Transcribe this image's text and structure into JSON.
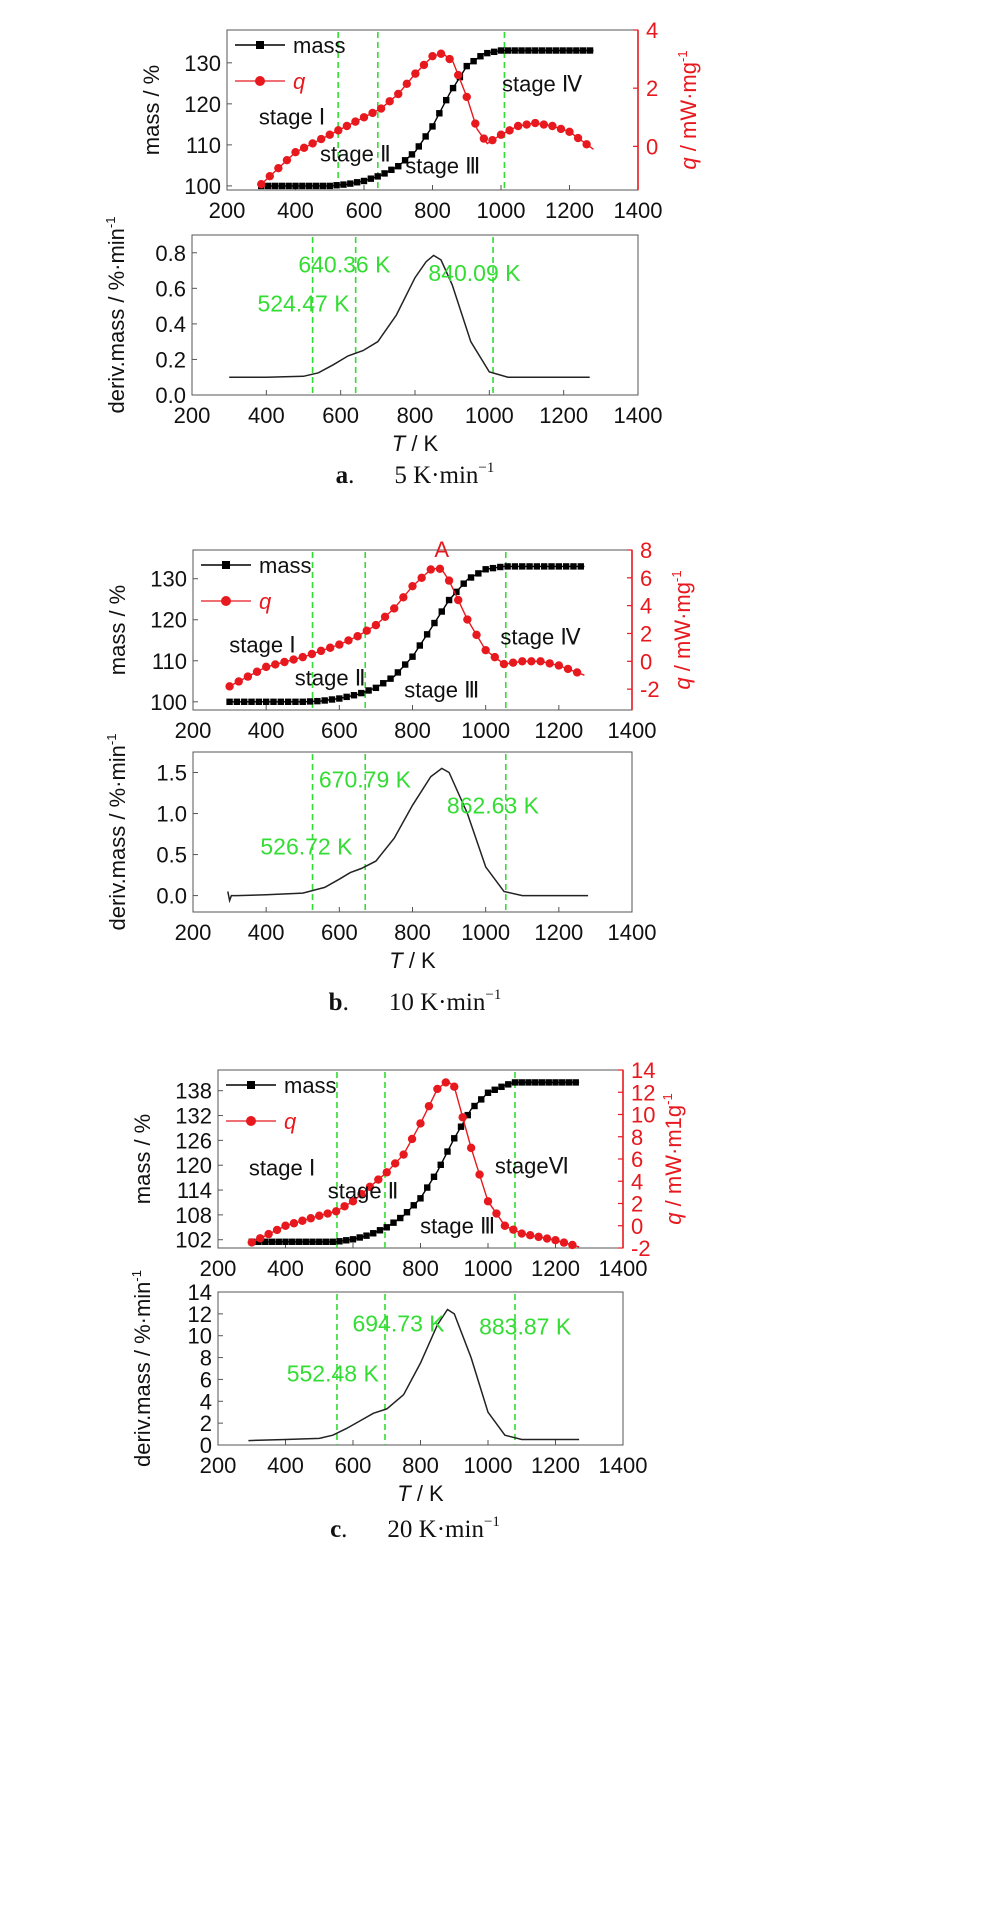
{
  "colors": {
    "mass": "#000000",
    "q": "#e8191e",
    "marker_line": "#33dd33",
    "axis": "#555555",
    "text": "#111111"
  },
  "chart_data": [
    {
      "panel": "a",
      "caption": {
        "letter": "a",
        "punct": ".",
        "rate": "5 K·min",
        "exp": "−1"
      },
      "top": {
        "type": "line",
        "xlim": [
          200,
          1400
        ],
        "xticks": [
          200,
          400,
          600,
          800,
          1000,
          1200,
          1400
        ],
        "ylim_left": [
          99,
          138
        ],
        "yticks_left": [
          100,
          110,
          120,
          130
        ],
        "ylabel_left": "mass / %",
        "ylim_right": [
          -1.5,
          4
        ],
        "yticks_right": [
          0,
          2,
          4
        ],
        "ylabel_right": {
          "italic": "q",
          "text": " / mW·mg",
          "sup": "-1"
        },
        "legend": [
          "mass",
          "q"
        ],
        "legend_position": "top-left",
        "vlines": [
          524.47,
          640.36,
          1010
        ],
        "stages": [
          {
            "label": "stage Ⅰ",
            "x": 390,
            "y": 115
          },
          {
            "label": "stage Ⅱ",
            "x": 575,
            "y": 106
          },
          {
            "label": "stage Ⅲ",
            "x": 830,
            "y": 103
          },
          {
            "label": "stage Ⅳ",
            "x": 1120,
            "y": 123
          }
        ],
        "series": [
          {
            "name": "mass",
            "axis": "left",
            "marker": "square",
            "x": [
              300,
              500,
              550,
              600,
              650,
              700,
              750,
              800,
              850,
              900,
              950,
              1000,
              1050,
              1270
            ],
            "y": [
              100,
              100,
              100.4,
              101.2,
              102.6,
              104.8,
              108.4,
              114.5,
              122.5,
              129.2,
              132.2,
              133,
              133,
              133
            ]
          },
          {
            "name": "q",
            "axis": "right",
            "marker": "circle",
            "x": [
              300,
              400,
              500,
              600,
              650,
              700,
              750,
              800,
              830,
              860,
              900,
              930,
              960,
              1000,
              1050,
              1100,
              1150,
              1200,
              1270
            ],
            "y": [
              -1.3,
              -0.2,
              0.4,
              1.0,
              1.3,
              1.8,
              2.5,
              3.1,
              3.2,
              2.9,
              1.7,
              0.6,
              0.1,
              0.4,
              0.7,
              0.8,
              0.7,
              0.5,
              -0.1
            ]
          }
        ]
      },
      "bottom": {
        "type": "line",
        "xlim": [
          200,
          1400
        ],
        "xticks": [
          200,
          400,
          600,
          800,
          1000,
          1200,
          1400
        ],
        "ylim": [
          0,
          0.9
        ],
        "yticks": [
          0.0,
          0.2,
          0.4,
          0.6,
          0.8
        ],
        "ytick_labels": [
          "0.0",
          "0.2",
          "0.4",
          "0.6",
          "0.8"
        ],
        "ylabel": "deriv.mass / %·min",
        "ylabel_sup": "-1",
        "xlabel": {
          "italic": "T",
          "text": " / K"
        },
        "vlines": [
          524.47,
          640.36,
          1010
        ],
        "temps": [
          {
            "label": "524.47 K",
            "x": 500,
            "y": 0.47
          },
          {
            "label": "640.36 K",
            "x": 610,
            "y": 0.69
          },
          {
            "label": "840.09 K",
            "x": 960,
            "y": 0.64
          }
        ],
        "series": [
          {
            "name": "deriv.mass",
            "x": [
              300,
              400,
              500,
              540,
              580,
              620,
              660,
              700,
              750,
              800,
              830,
              850,
              870,
              900,
              950,
              1000,
              1050,
              1100,
              1200,
              1270
            ],
            "y": [
              0.1,
              0.1,
              0.105,
              0.125,
              0.17,
              0.22,
              0.25,
              0.3,
              0.45,
              0.66,
              0.75,
              0.785,
              0.76,
              0.62,
              0.3,
              0.13,
              0.1,
              0.1,
              0.1,
              0.1
            ]
          }
        ]
      }
    },
    {
      "panel": "b",
      "caption": {
        "letter": "b",
        "punct": ".",
        "rate": "10 K·min",
        "exp": "−1"
      },
      "top": {
        "type": "line",
        "xlim": [
          200,
          1400
        ],
        "xticks": [
          200,
          400,
          600,
          800,
          1000,
          1200,
          1400
        ],
        "ylim_left": [
          98,
          137
        ],
        "yticks_left": [
          100,
          110,
          120,
          130
        ],
        "ylabel_left": "mass / %",
        "ylim_right": [
          -3.5,
          8
        ],
        "yticks_right": [
          -2,
          0,
          2,
          4,
          6,
          8
        ],
        "ylabel_right": {
          "italic": "q",
          "text": " / mW·mg",
          "sup": "-1"
        },
        "legend": [
          "mass",
          "q"
        ],
        "legend_position": "top-left",
        "annotation": {
          "label": "A",
          "x": 880,
          "y": 7.5
        },
        "vlines": [
          526.72,
          670.79,
          1055
        ],
        "stages": [
          {
            "label": "stage Ⅰ",
            "x": 390,
            "y": 112
          },
          {
            "label": "stage Ⅱ",
            "x": 575,
            "y": 104
          },
          {
            "label": "stage Ⅲ",
            "x": 880,
            "y": 101
          },
          {
            "label": "stage Ⅳ",
            "x": 1150,
            "y": 114
          }
        ],
        "series": [
          {
            "name": "mass",
            "axis": "left",
            "marker": "square",
            "x": [
              300,
              500,
              550,
              600,
              650,
              700,
              750,
              800,
              850,
              900,
              950,
              1000,
              1050,
              1100,
              1270
            ],
            "y": [
              100,
              100,
              100.2,
              100.8,
              101.8,
              103.4,
              106.2,
              111,
              117.8,
              124.8,
              129.8,
              132.3,
              133,
              133,
              133
            ]
          },
          {
            "name": "q",
            "axis": "right",
            "marker": "circle",
            "x": [
              300,
              400,
              500,
              600,
              650,
              700,
              750,
              800,
              850,
              870,
              880,
              900,
              950,
              1000,
              1050,
              1100,
              1150,
              1200,
              1270
            ],
            "y": [
              -1.8,
              -0.4,
              0.3,
              1.2,
              1.8,
              2.6,
              3.8,
              5.4,
              6.6,
              6.7,
              6.6,
              5.8,
              3.0,
              0.8,
              -0.2,
              0.0,
              0.0,
              -0.3,
              -1.0
            ]
          }
        ]
      },
      "bottom": {
        "type": "line",
        "xlim": [
          200,
          1400
        ],
        "xticks": [
          200,
          400,
          600,
          800,
          1000,
          1200,
          1400
        ],
        "ylim": [
          -0.2,
          1.75
        ],
        "yticks": [
          0.0,
          0.5,
          1.0,
          1.5
        ],
        "ytick_labels": [
          "0.0",
          "0.5",
          "1.0",
          "1.5"
        ],
        "ylabel": "deriv.mass / %·min",
        "ylabel_sup": "-1",
        "xlabel": {
          "italic": "T",
          "text": " / K"
        },
        "vlines": [
          526.72,
          670.79,
          1055
        ],
        "temps": [
          {
            "label": "526.72 K",
            "x": 510,
            "y": 0.5
          },
          {
            "label": "670.79 K",
            "x": 670,
            "y": 1.32
          },
          {
            "label": "862.63 K",
            "x": 1020,
            "y": 1.0
          }
        ],
        "series": [
          {
            "name": "deriv.mass",
            "x": [
              295,
              300,
              305,
              320,
              400,
              500,
              560,
              600,
              630,
              660,
              700,
              750,
              800,
              850,
              880,
              900,
              950,
              1000,
              1050,
              1100,
              1200,
              1280
            ],
            "y": [
              0.05,
              -0.06,
              0.0,
              0.0,
              0.01,
              0.03,
              0.1,
              0.2,
              0.28,
              0.33,
              0.42,
              0.7,
              1.1,
              1.45,
              1.55,
              1.5,
              1.0,
              0.35,
              0.05,
              0.0,
              0.0,
              0.0
            ]
          }
        ]
      }
    },
    {
      "panel": "c",
      "caption": {
        "letter": "c",
        "punct": ".",
        "rate": "20 K·min",
        "exp": "−1"
      },
      "top": {
        "type": "line",
        "xlim": [
          200,
          1400
        ],
        "xticks": [
          200,
          400,
          600,
          800,
          1000,
          1200,
          1400
        ],
        "ylim_left": [
          100,
          143
        ],
        "yticks_left": [
          102,
          108,
          114,
          120,
          126,
          132,
          138
        ],
        "ylabel_left": "mass / %",
        "ylim_right": [
          -2,
          14
        ],
        "yticks_right": [
          -2,
          0,
          2,
          4,
          6,
          8,
          10,
          12,
          14
        ],
        "ylabel_right": {
          "italic": "q",
          "text": " / mW·m1g",
          "sup": "-1"
        },
        "legend": [
          "mass",
          "q"
        ],
        "legend_position": "top-left",
        "vlines": [
          552.48,
          694.73,
          1080
        ],
        "stages": [
          {
            "label": "stage Ⅰ",
            "x": 390,
            "y": 117.5
          },
          {
            "label": "stage Ⅱ",
            "x": 630,
            "y": 112
          },
          {
            "label": "stage Ⅲ",
            "x": 910,
            "y": 103.5
          },
          {
            "label": "stageⅥ",
            "x": 1130,
            "y": 118
          }
        ],
        "series": [
          {
            "name": "mass",
            "axis": "left",
            "marker": "square",
            "x": [
              300,
              550,
              600,
              650,
              700,
              750,
              800,
              850,
              900,
              950,
              1000,
              1050,
              1080,
              1100,
              1270
            ],
            "y": [
              101.5,
              101.5,
              102.1,
              103.2,
              105,
              107.8,
              112,
              118.5,
              126.5,
              133.5,
              137.5,
              139.3,
              140,
              140,
              140
            ]
          },
          {
            "name": "q",
            "axis": "right",
            "marker": "circle",
            "x": [
              300,
              400,
              500,
              550,
              600,
              650,
              700,
              750,
              800,
              850,
              880,
              900,
              950,
              1000,
              1050,
              1100,
              1150,
              1200,
              1270
            ],
            "y": [
              -1.5,
              0.0,
              0.9,
              1.3,
              2.2,
              3.5,
              4.8,
              6.4,
              9.2,
              12.3,
              13.0,
              12.5,
              7.0,
              2.2,
              0.0,
              -0.7,
              -1.0,
              -1.3,
              -1.9
            ]
          }
        ]
      },
      "bottom": {
        "type": "line",
        "xlim": [
          200,
          1400
        ],
        "xticks": [
          200,
          400,
          600,
          800,
          1000,
          1200,
          1400
        ],
        "ylim": [
          0,
          14
        ],
        "yticks": [
          0,
          2,
          4,
          6,
          8,
          10,
          12,
          14
        ],
        "ytick_labels": [
          "0",
          "2",
          "4",
          "6",
          "8",
          "10",
          "12",
          "14"
        ],
        "ylabel": "deriv.mass / %·min",
        "ylabel_sup": "-1",
        "xlabel": {
          "italic": "T",
          "text": " / K"
        },
        "vlines": [
          552.48,
          694.73,
          1080
        ],
        "temps": [
          {
            "label": "552.48 K",
            "x": 540,
            "y": 5.8
          },
          {
            "label": "694.73 K",
            "x": 735,
            "y": 10.4
          },
          {
            "label": "883.87 K",
            "x": 1110,
            "y": 10.1
          }
        ],
        "series": [
          {
            "name": "deriv.mass",
            "x": [
              290,
              400,
              500,
              540,
              580,
              620,
              660,
              700,
              750,
              800,
              850,
              880,
              900,
              950,
              1000,
              1050,
              1100,
              1200,
              1270
            ],
            "y": [
              0.4,
              0.5,
              0.6,
              0.9,
              1.5,
              2.2,
              2.9,
              3.3,
              4.6,
              7.5,
              11.0,
              12.4,
              12.0,
              8.0,
              3.0,
              0.9,
              0.5,
              0.5,
              0.5
            ]
          }
        ]
      }
    }
  ]
}
